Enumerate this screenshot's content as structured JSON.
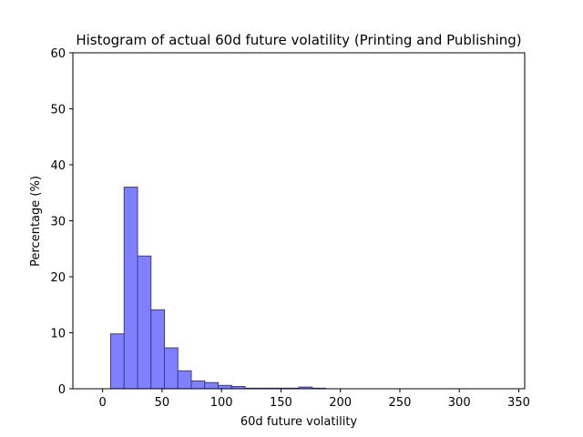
{
  "chart_data": {
    "type": "bar",
    "title": "Histogram of actual 60d future volatility (Printing and Publishing)",
    "xlabel": "60d future volatility",
    "ylabel": "Percentage (%)",
    "xlim": [
      -25,
      355
    ],
    "ylim": [
      0,
      60
    ],
    "x_ticks": [
      0,
      50,
      100,
      150,
      200,
      250,
      300,
      350
    ],
    "y_ticks": [
      0,
      10,
      20,
      30,
      40,
      50,
      60
    ],
    "bin_width": 11.3,
    "bin_edges_start": 6.8,
    "values": [
      9.8,
      36.0,
      23.7,
      14.1,
      7.3,
      3.2,
      1.4,
      1.1,
      0.6,
      0.4,
      0.1,
      0.1,
      0.1,
      0.1,
      0.3,
      0.1,
      0.0,
      0.0,
      0.0,
      0.0,
      0.0,
      0.0,
      0.0,
      0.0,
      0.0,
      0.0,
      0.0,
      0.0,
      0.0
    ],
    "bar_color": "#8080ff",
    "edge_color": "#3b3b8c"
  }
}
